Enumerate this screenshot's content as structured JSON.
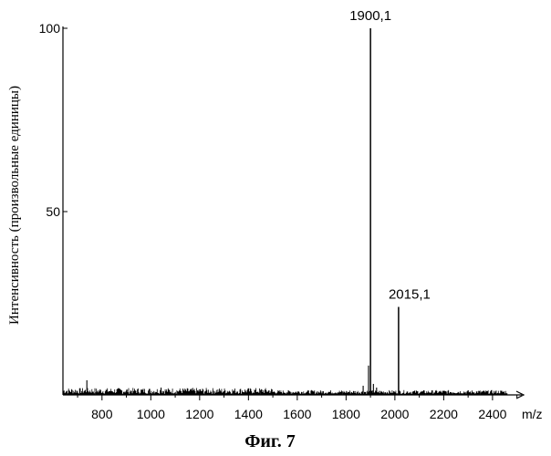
{
  "chart_data": {
    "type": "line",
    "ylabel": "Интенсивность (произвольные единицы)",
    "xlabel": "m/z",
    "caption": "Фиг. 7",
    "xlim": [
      640,
      2520
    ],
    "ylim": [
      0,
      100
    ],
    "x_ticks": [
      800,
      1000,
      1200,
      1400,
      1600,
      1800,
      2000,
      2200,
      2400
    ],
    "x_tick_labels": [
      "800",
      "1000",
      "1200",
      "1400",
      "1600",
      "1800",
      "2000",
      "2200",
      "2400"
    ],
    "y_ticks": [
      50,
      100
    ],
    "y_tick_labels": [
      "50",
      "100"
    ],
    "peaks": [
      {
        "x": 1900.1,
        "y": 100,
        "label": "1900,1"
      },
      {
        "x": 2015.1,
        "y": 24,
        "label": "2015,1"
      }
    ],
    "minor_peaks": [
      {
        "x": 738,
        "y": 4
      },
      {
        "x": 1042,
        "y": 2
      },
      {
        "x": 1870,
        "y": 2.5
      },
      {
        "x": 1892,
        "y": 8
      },
      {
        "x": 1912,
        "y": 3
      },
      {
        "x": 1925,
        "y": 2
      }
    ],
    "line_color": "#000000",
    "grid": false
  }
}
